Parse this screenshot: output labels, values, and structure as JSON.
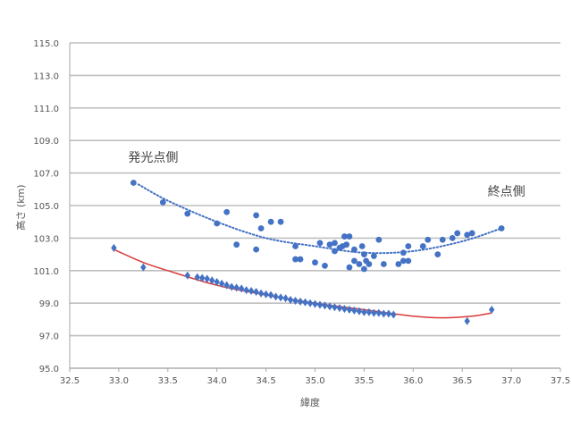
{
  "chart_data": {
    "type": "scatter",
    "title": "",
    "xlabel": "緯度",
    "ylabel": "高さ (km)",
    "xlim": [
      32.5,
      37.5
    ],
    "ylim": [
      95.0,
      115.0
    ],
    "x_ticks": [
      "32.5",
      "33.0",
      "33.5",
      "34.0",
      "34.5",
      "35.0",
      "35.5",
      "36.0",
      "36.5",
      "37.0",
      "37.5"
    ],
    "y_ticks": [
      "95.0",
      "97.0",
      "99.0",
      "101.0",
      "103.0",
      "105.0",
      "107.0",
      "109.0",
      "111.0",
      "113.0",
      "115.0"
    ],
    "grid": "horizontal",
    "legend": "none",
    "annotations": [
      {
        "text": "発光点側",
        "x": 33.35,
        "y": 107.7
      },
      {
        "text": "終点側",
        "x": 36.95,
        "y": 105.6
      }
    ],
    "series": [
      {
        "marker": "circle",
        "color": "#4472C4",
        "points": [
          [
            33.15,
            106.4
          ],
          [
            33.45,
            105.2
          ],
          [
            33.7,
            104.5
          ],
          [
            34.0,
            103.9
          ],
          [
            34.1,
            104.6
          ],
          [
            34.2,
            102.6
          ],
          [
            34.4,
            104.4
          ],
          [
            34.45,
            103.6
          ],
          [
            34.4,
            102.3
          ],
          [
            34.55,
            104.0
          ],
          [
            34.65,
            104.0
          ],
          [
            34.8,
            102.5
          ],
          [
            34.8,
            101.7
          ],
          [
            34.85,
            101.7
          ],
          [
            35.0,
            101.5
          ],
          [
            35.05,
            102.7
          ],
          [
            35.1,
            101.3
          ],
          [
            35.15,
            102.6
          ],
          [
            35.2,
            102.7
          ],
          [
            35.2,
            102.2
          ],
          [
            35.25,
            102.4
          ],
          [
            35.28,
            102.5
          ],
          [
            35.3,
            103.1
          ],
          [
            35.32,
            102.6
          ],
          [
            35.35,
            103.1
          ],
          [
            35.35,
            101.2
          ],
          [
            35.4,
            101.6
          ],
          [
            35.4,
            102.3
          ],
          [
            35.45,
            101.4
          ],
          [
            35.48,
            102.5
          ],
          [
            35.5,
            101.1
          ],
          [
            35.5,
            102.0
          ],
          [
            35.52,
            101.6
          ],
          [
            35.55,
            101.4
          ],
          [
            35.6,
            101.9
          ],
          [
            35.65,
            102.9
          ],
          [
            35.7,
            101.4
          ],
          [
            35.85,
            101.4
          ],
          [
            35.9,
            101.6
          ],
          [
            35.9,
            102.1
          ],
          [
            35.95,
            101.6
          ],
          [
            35.95,
            102.5
          ],
          [
            36.1,
            102.5
          ],
          [
            36.15,
            102.9
          ],
          [
            36.25,
            102.0
          ],
          [
            36.3,
            102.9
          ],
          [
            36.4,
            103.0
          ],
          [
            36.45,
            103.3
          ],
          [
            36.55,
            103.2
          ],
          [
            36.6,
            103.3
          ],
          [
            36.9,
            103.6
          ]
        ],
        "trend": {
          "type": "polynomial",
          "style": "dotted",
          "color": "#4472C4",
          "x_range": [
            33.2,
            36.9
          ],
          "points": [
            [
              33.2,
              106.3
            ],
            [
              33.5,
              105.3
            ],
            [
              34.0,
              104.0
            ],
            [
              34.5,
              103.0
            ],
            [
              35.0,
              102.5
            ],
            [
              35.5,
              102.1
            ],
            [
              36.0,
              102.2
            ],
            [
              36.5,
              102.8
            ],
            [
              36.9,
              103.6
            ]
          ]
        }
      },
      {
        "marker": "diamond",
        "color": "#4472C4",
        "points": [
          [
            32.95,
            102.4
          ],
          [
            33.25,
            101.2
          ],
          [
            33.7,
            100.7
          ],
          [
            33.8,
            100.6
          ],
          [
            33.85,
            100.55
          ],
          [
            33.9,
            100.5
          ],
          [
            33.95,
            100.4
          ],
          [
            34.0,
            100.3
          ],
          [
            34.05,
            100.2
          ],
          [
            34.1,
            100.1
          ],
          [
            34.15,
            100.0
          ],
          [
            34.2,
            99.95
          ],
          [
            34.25,
            99.9
          ],
          [
            34.3,
            99.8
          ],
          [
            34.35,
            99.75
          ],
          [
            34.4,
            99.7
          ],
          [
            34.45,
            99.6
          ],
          [
            34.5,
            99.55
          ],
          [
            34.55,
            99.5
          ],
          [
            34.6,
            99.4
          ],
          [
            34.65,
            99.35
          ],
          [
            34.7,
            99.3
          ],
          [
            34.75,
            99.2
          ],
          [
            34.8,
            99.15
          ],
          [
            34.85,
            99.1
          ],
          [
            34.9,
            99.05
          ],
          [
            34.95,
            99.0
          ],
          [
            35.0,
            98.95
          ],
          [
            35.05,
            98.9
          ],
          [
            35.1,
            98.85
          ],
          [
            35.15,
            98.8
          ],
          [
            35.2,
            98.75
          ],
          [
            35.25,
            98.7
          ],
          [
            35.3,
            98.65
          ],
          [
            35.35,
            98.6
          ],
          [
            35.4,
            98.55
          ],
          [
            35.45,
            98.5
          ],
          [
            35.5,
            98.45
          ],
          [
            35.55,
            98.45
          ],
          [
            35.6,
            98.4
          ],
          [
            35.65,
            98.4
          ],
          [
            35.7,
            98.35
          ],
          [
            35.75,
            98.35
          ],
          [
            35.8,
            98.3
          ],
          [
            36.55,
            97.9
          ],
          [
            36.8,
            98.6
          ]
        ],
        "trend": {
          "type": "polynomial",
          "style": "solid",
          "color": "#D93A3A",
          "x_range": [
            32.95,
            36.8
          ],
          "points": [
            [
              32.95,
              102.3
            ],
            [
              33.25,
              101.5
            ],
            [
              33.5,
              101.0
            ],
            [
              34.0,
              100.1
            ],
            [
              34.5,
              99.5
            ],
            [
              35.0,
              99.0
            ],
            [
              35.5,
              98.6
            ],
            [
              36.0,
              98.2
            ],
            [
              36.3,
              98.1
            ],
            [
              36.6,
              98.2
            ],
            [
              36.8,
              98.4
            ]
          ]
        }
      }
    ]
  }
}
